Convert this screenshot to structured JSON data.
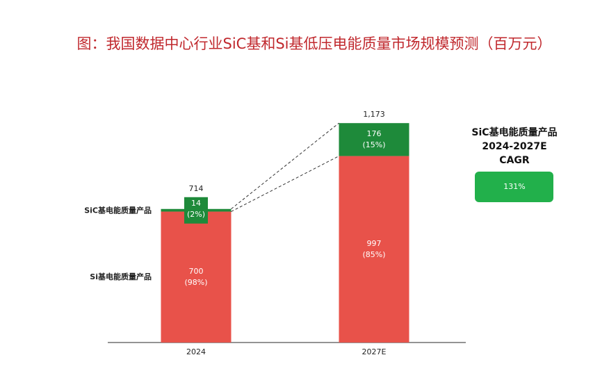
{
  "chart_data": {
    "type": "stacked-bar",
    "title": "图：我国数据中心行业SiC基和Si基低压电能质量市场规模预测（百万元）",
    "categories": [
      "2024",
      "2027E"
    ],
    "series": [
      {
        "name": "Si基电能质量产品",
        "color": "#e8524a",
        "values": [
          700,
          997
        ],
        "share_labels": [
          "(98%)",
          "(85%)"
        ]
      },
      {
        "name": "SiC基电能质量产品",
        "color": "#1e8a3a",
        "values": [
          14,
          176
        ],
        "share_labels": [
          "(2%)",
          "(15%)"
        ]
      }
    ],
    "total_labels": [
      "714",
      "1,173"
    ],
    "ylim": [
      0,
      1300
    ],
    "cagr": {
      "title": [
        "SiC基电能质量产品",
        "2024-2027E",
        "CAGR"
      ],
      "value": 131,
      "label": "131%",
      "color": "#22b04b"
    }
  }
}
